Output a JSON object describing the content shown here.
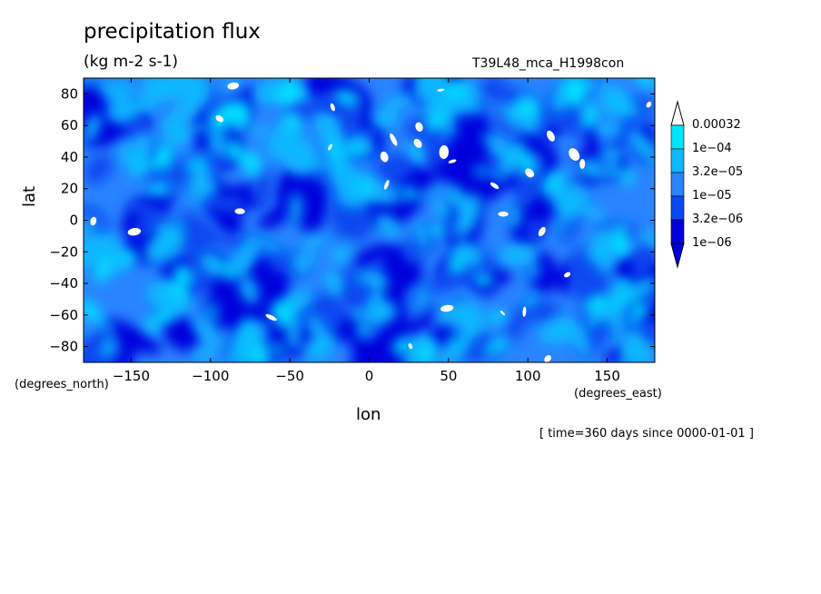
{
  "chart_data": {
    "type": "heatmap",
    "title": "precipitation flux",
    "units": "(kg m-2 s-1)",
    "run_name": "T39L48_mca_H1998con",
    "xlabel": "lon",
    "ylabel": "lat",
    "x_unit": "(degrees_east)",
    "y_unit": "(degrees_north)",
    "xlim": [
      -180,
      180
    ],
    "ylim": [
      -90,
      90
    ],
    "x_ticks": [
      -150,
      -100,
      -50,
      0,
      50,
      100,
      150
    ],
    "x_tick_labels": [
      "−150",
      "−100",
      "−50",
      "0",
      "50",
      "100",
      "150"
    ],
    "y_ticks": [
      80,
      60,
      40,
      20,
      0,
      -20,
      -40,
      -60,
      -80
    ],
    "y_tick_labels": [
      "80",
      "60",
      "40",
      "20",
      "0",
      "−20",
      "−40",
      "−60",
      "−80"
    ],
    "colorbar": {
      "levels": [
        "1e−06",
        "3.2e−06",
        "1e−05",
        "3.2e−05",
        "1e−04",
        "0.00032"
      ],
      "colors": [
        "#0000dd",
        "#0c48f0",
        "#2a84ff",
        "#10b8ff",
        "#00e4ff",
        "#ffffff"
      ]
    },
    "annotation": "[ time=360 days since 0000-01-01 ]"
  }
}
